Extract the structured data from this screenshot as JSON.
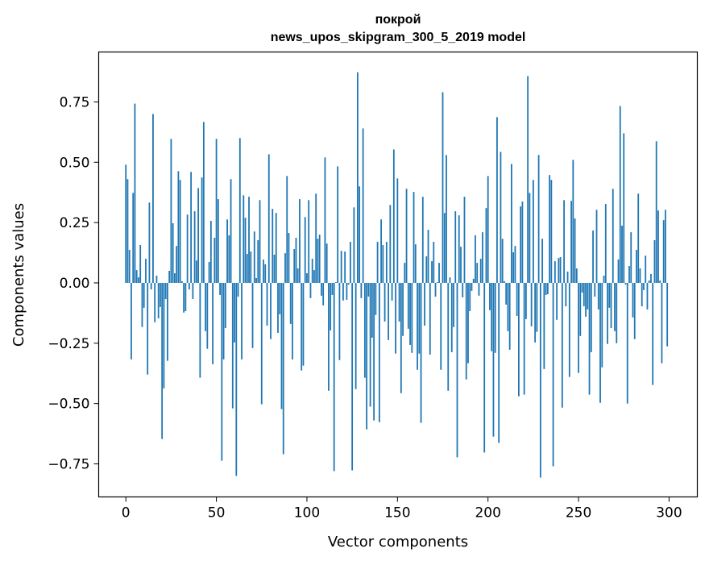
{
  "chart_data": {
    "type": "bar",
    "title": "покрой",
    "subtitle": "news_upos_skipgram_300_5_2019 model",
    "xlabel": "Vector components",
    "ylabel": "Components values",
    "xlim": [
      -15,
      315.6
    ],
    "ylim": [
      -0.887,
      0.957
    ],
    "xticks": [
      0,
      50,
      100,
      150,
      200,
      250,
      300
    ],
    "xtick_labels": [
      "0",
      "50",
      "100",
      "150",
      "200",
      "250",
      "300"
    ],
    "yticks": [
      -0.75,
      -0.5,
      -0.25,
      0,
      0.25,
      0.5,
      0.75
    ],
    "ytick_labels": [
      "−0.75",
      "−0.50",
      "−0.25",
      "0.00",
      "0.25",
      "0.50",
      "0.75"
    ],
    "grid": false,
    "color": "#1f77b4",
    "values": [
      0.49,
      0.43,
      0.137,
      -0.317,
      0.373,
      0.743,
      0.053,
      0.023,
      0.157,
      -0.183,
      -0.103,
      0.1,
      -0.38,
      0.333,
      -0.027,
      0.7,
      -0.163,
      0.03,
      -0.147,
      -0.1,
      -0.647,
      -0.437,
      -0.067,
      -0.323,
      0.05,
      0.597,
      0.247,
      0.04,
      0.153,
      0.463,
      0.427,
      0.007,
      -0.123,
      -0.117,
      0.283,
      -0.027,
      0.46,
      -0.067,
      0.297,
      0.093,
      0.393,
      -0.393,
      0.437,
      0.667,
      -0.2,
      -0.273,
      0.087,
      0.257,
      -0.337,
      0.187,
      0.597,
      0.347,
      -0.05,
      -0.737,
      -0.317,
      -0.187,
      0.263,
      0.197,
      0.43,
      -0.52,
      -0.247,
      -0.8,
      -0.057,
      0.6,
      -0.317,
      0.363,
      0.27,
      0.12,
      0.357,
      0.13,
      -0.27,
      0.213,
      0.02,
      0.177,
      0.343,
      -0.503,
      0.097,
      0.077,
      -0.177,
      0.533,
      -0.233,
      0.307,
      0.117,
      0.29,
      -0.207,
      -0.13,
      -0.523,
      -0.71,
      0.123,
      0.443,
      0.207,
      -0.17,
      -0.317,
      0.14,
      0.187,
      0.06,
      0.347,
      -0.363,
      -0.343,
      0.273,
      0.04,
      0.343,
      -0.063,
      0.1,
      0.053,
      0.37,
      0.183,
      0.2,
      -0.053,
      -0.093,
      0.52,
      0.163,
      -0.447,
      -0.197,
      -0.05,
      -0.78,
      0.003,
      0.483,
      -0.32,
      0.133,
      -0.073,
      0.13,
      -0.07,
      -0.007,
      0.17,
      -0.777,
      0.313,
      -0.44,
      0.873,
      0.4,
      -0.063,
      0.64,
      -0.393,
      -0.607,
      -0.057,
      -0.513,
      -0.227,
      -0.57,
      -0.133,
      0.17,
      -0.577,
      0.263,
      0.157,
      -0.16,
      0.17,
      -0.237,
      0.323,
      -0.073,
      0.553,
      -0.293,
      0.433,
      -0.16,
      -0.457,
      -0.22,
      0.083,
      0.39,
      -0.19,
      -0.257,
      -0.29,
      0.377,
      0.16,
      -0.36,
      -0.293,
      -0.58,
      0.357,
      -0.177,
      0.11,
      0.22,
      -0.297,
      0.09,
      0.17,
      -0.057,
      0.003,
      0.083,
      -0.36,
      0.79,
      0.29,
      0.53,
      -0.447,
      0.023,
      -0.287,
      -0.183,
      0.297,
      -0.723,
      0.28,
      0.15,
      -0.06,
      0.357,
      -0.4,
      -0.333,
      -0.117,
      -0.033,
      0.017,
      0.197,
      0.083,
      -0.053,
      0.1,
      0.21,
      -0.703,
      0.31,
      0.443,
      -0.113,
      -0.283,
      -0.637,
      -0.29,
      0.687,
      -0.663,
      0.543,
      0.183,
      0.007,
      -0.09,
      -0.2,
      -0.277,
      0.493,
      0.127,
      0.153,
      -0.137,
      -0.47,
      0.317,
      0.337,
      -0.463,
      -0.15,
      0.857,
      0.373,
      -0.18,
      0.427,
      -0.247,
      -0.203,
      0.53,
      -0.807,
      0.183,
      -0.357,
      -0.05,
      -0.047,
      0.447,
      0.427,
      -0.76,
      0.09,
      -0.153,
      0.103,
      0.107,
      -0.517,
      0.343,
      -0.097,
      0.047,
      -0.39,
      0.34,
      0.51,
      0.267,
      0.06,
      -0.373,
      -0.22,
      -0.04,
      -0.097,
      -0.14,
      -0.11,
      -0.463,
      -0.287,
      0.217,
      -0.057,
      0.303,
      -0.11,
      -0.497,
      -0.35,
      0.03,
      0.327,
      -0.253,
      -0.103,
      -0.187,
      0.39,
      -0.2,
      -0.25,
      0.097,
      0.733,
      0.237,
      0.62,
      -0.007,
      -0.5,
      0.07,
      0.21,
      -0.143,
      -0.233,
      0.137,
      0.37,
      0.06,
      -0.097,
      -0.03,
      0.113,
      -0.11,
      0.01,
      0.037,
      -0.423,
      0.177,
      0.587,
      0.3,
      0.01,
      -0.333,
      0.26,
      0.303,
      -0.263
    ]
  }
}
